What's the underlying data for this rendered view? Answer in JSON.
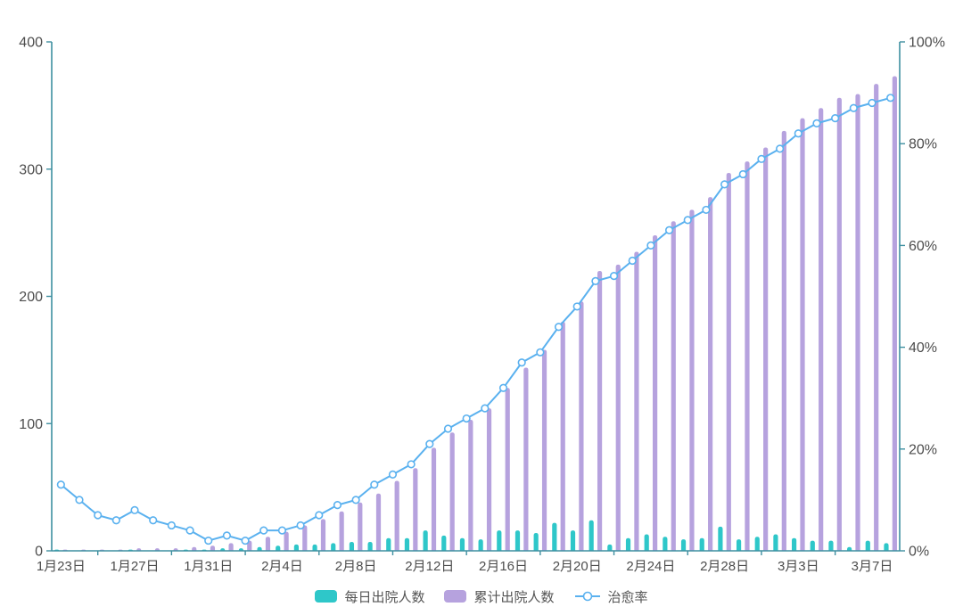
{
  "page": {
    "background": "#ffffff"
  },
  "chart_data": {
    "type": "bar",
    "subtype": "combo-bar-line-dual-axis",
    "categories": [
      "1月23日",
      "1月24日",
      "1月25日",
      "1月26日",
      "1月27日",
      "1月28日",
      "1月29日",
      "1月30日",
      "1月31日",
      "2月1日",
      "2月2日",
      "2月3日",
      "2月4日",
      "2月5日",
      "2月6日",
      "2月7日",
      "2月8日",
      "2月9日",
      "2月10日",
      "2月11日",
      "2月12日",
      "2月13日",
      "2月14日",
      "2月15日",
      "2月16日",
      "2月17日",
      "2月18日",
      "2月19日",
      "2月20日",
      "2月21日",
      "2月22日",
      "2月23日",
      "2月24日",
      "2月25日",
      "2月26日",
      "2月27日",
      "2月28日",
      "2月29日",
      "3月1日",
      "3月2日",
      "3月3日",
      "3月4日",
      "3月5日",
      "3月6日",
      "3月7日",
      "3月8日"
    ],
    "x_label_every": 4,
    "x_tick_labels_shown": [
      "1月23日",
      "1月27日",
      "1月31日",
      "2月4日",
      "2月8日",
      "2月12日",
      "2月16日",
      "2月20日",
      "2月24日",
      "2月28日",
      "3月3日",
      "3月7日"
    ],
    "series": [
      {
        "name": "每日出院人数",
        "type": "bar",
        "axis": "left",
        "color": "#2ec7c9",
        "values": [
          1,
          0,
          0,
          0,
          1,
          0,
          0,
          1,
          1,
          2,
          2,
          3,
          4,
          5,
          5,
          6,
          7,
          7,
          10,
          10,
          16,
          12,
          10,
          9,
          16,
          16,
          14,
          22,
          16,
          24,
          5,
          10,
          13,
          11,
          9,
          10,
          19,
          9,
          11,
          13,
          10,
          8,
          8,
          3,
          8,
          6
        ]
      },
      {
        "name": "累计出院人数",
        "type": "bar",
        "axis": "left",
        "color": "#b6a2de",
        "values": [
          1,
          1,
          1,
          1,
          2,
          2,
          2,
          3,
          4,
          6,
          8,
          11,
          15,
          20,
          25,
          31,
          38,
          45,
          55,
          65,
          81,
          93,
          103,
          112,
          128,
          144,
          158,
          180,
          196,
          220,
          225,
          235,
          248,
          259,
          268,
          278,
          297,
          306,
          317,
          330,
          340,
          348,
          356,
          359,
          367,
          373
        ]
      },
      {
        "name": "治愈率",
        "type": "line",
        "axis": "right",
        "color": "#5ab1ef",
        "marker": "hollow-circle",
        "values": [
          13,
          10,
          7,
          6,
          8,
          6,
          5,
          4,
          2,
          3,
          2,
          4,
          4,
          5,
          7,
          9,
          10,
          13,
          15,
          17,
          21,
          24,
          26,
          28,
          32,
          37,
          39,
          44,
          48,
          53,
          54,
          57,
          60,
          63,
          65,
          67,
          72,
          74,
          77,
          79,
          82,
          84,
          85,
          87,
          88,
          89
        ]
      }
    ],
    "left_axis": {
      "min": 0,
      "max": 400,
      "tick_values": [
        0,
        100,
        200,
        300,
        400
      ]
    },
    "right_axis": {
      "min": 0,
      "max": 100,
      "tick_labels": [
        "0%",
        "20%",
        "40%",
        "60%",
        "80%",
        "100%"
      ]
    },
    "grid_lines": false,
    "legend_position": "bottom",
    "axis_color": "#3e8fa0",
    "label_color": "#4d4d4d"
  },
  "legend": {
    "items": [
      {
        "label": "每日出院人数",
        "swatch": "bar",
        "color": "#2ec7c9"
      },
      {
        "label": "累计出院人数",
        "swatch": "bar",
        "color": "#b6a2de"
      },
      {
        "label": "治愈率",
        "swatch": "line-circle",
        "color": "#5ab1ef"
      }
    ]
  }
}
